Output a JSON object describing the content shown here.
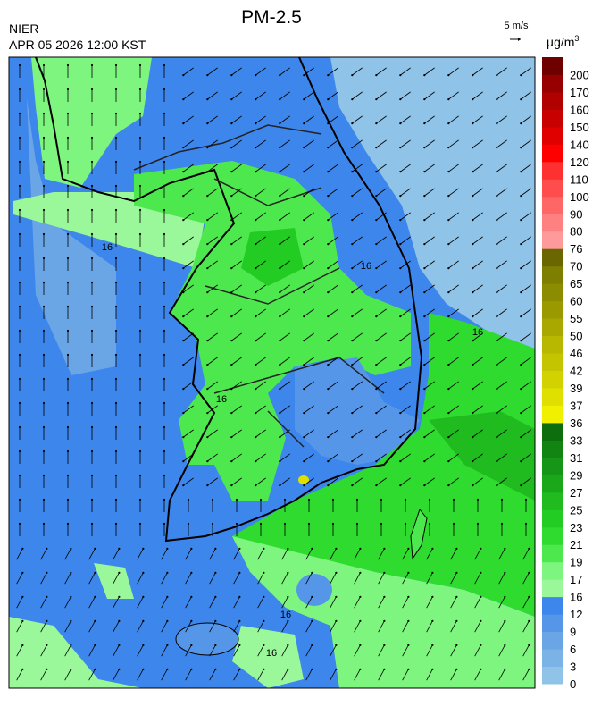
{
  "header": {
    "title": "PM-2.5",
    "agency": "NIER",
    "datetime": "APR 05 2026 12:00 KST",
    "wind_scale": "5 m/s"
  },
  "colorbar": {
    "unit": {
      "base": "µg/m",
      "exponent": "3"
    },
    "levels": [
      "0",
      "3",
      "6",
      "9",
      "12",
      "16",
      "17",
      "19",
      "21",
      "23",
      "25",
      "27",
      "29",
      "31",
      "33",
      "36",
      "37",
      "39",
      "42",
      "46",
      "50",
      "55",
      "60",
      "65",
      "70",
      "76",
      "80",
      "90",
      "100",
      "110",
      "120",
      "140",
      "150",
      "160",
      "170",
      "200"
    ],
    "colors": [
      "#8fc3e8",
      "#7bb3e6",
      "#6aa5e6",
      "#5596e8",
      "#3d86ec",
      "#9af79a",
      "#7ef57e",
      "#4de84d",
      "#2edb2e",
      "#22cc22",
      "#1fbb1f",
      "#1aa81a",
      "#169616",
      "#118411",
      "#0c6e0c",
      "#f0f000",
      "#e0e000",
      "#d2d200",
      "#c4c400",
      "#b8b800",
      "#a8a800",
      "#9a9a00",
      "#8c8c00",
      "#7e7e00",
      "#6a6600",
      "#ff9a9a",
      "#ff8080",
      "#ff6666",
      "#ff4c4c",
      "#ff3030",
      "#ff0000",
      "#e00000",
      "#c80000",
      "#b00000",
      "#960000",
      "#6e0000"
    ]
  },
  "map": {
    "contour_labels": [
      "16",
      "16",
      "16",
      "16",
      "16",
      "16"
    ]
  }
}
